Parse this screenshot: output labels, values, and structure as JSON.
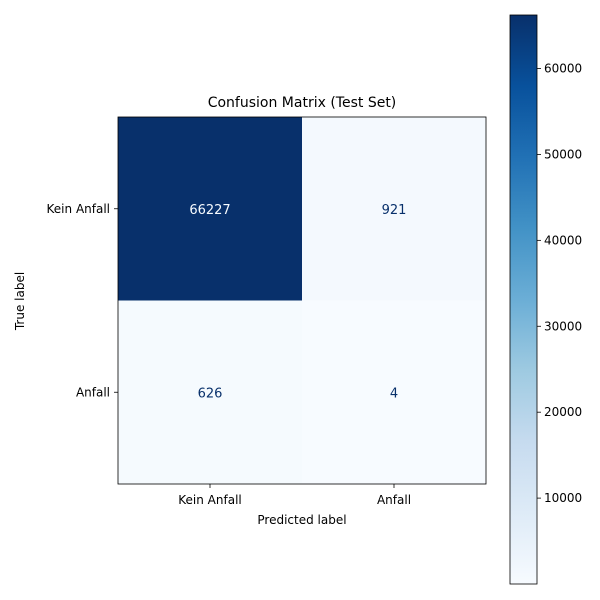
{
  "chart_data": {
    "type": "heatmap",
    "title": "Confusion Matrix (Test Set)",
    "xlabel": "Predicted label",
    "ylabel": "True label",
    "x_categories": [
      "Kein Anfall",
      "Anfall"
    ],
    "y_categories": [
      "Kein Anfall",
      "Anfall"
    ],
    "values": [
      [
        66227,
        921
      ],
      [
        626,
        4
      ]
    ],
    "colormap": "Blues",
    "colorbar": {
      "vmin": 4,
      "vmax": 66227,
      "ticks": [
        10000,
        20000,
        30000,
        40000,
        50000,
        60000
      ],
      "tick_labels": [
        "10000",
        "20000",
        "30000",
        "40000",
        "50000",
        "60000"
      ]
    }
  }
}
